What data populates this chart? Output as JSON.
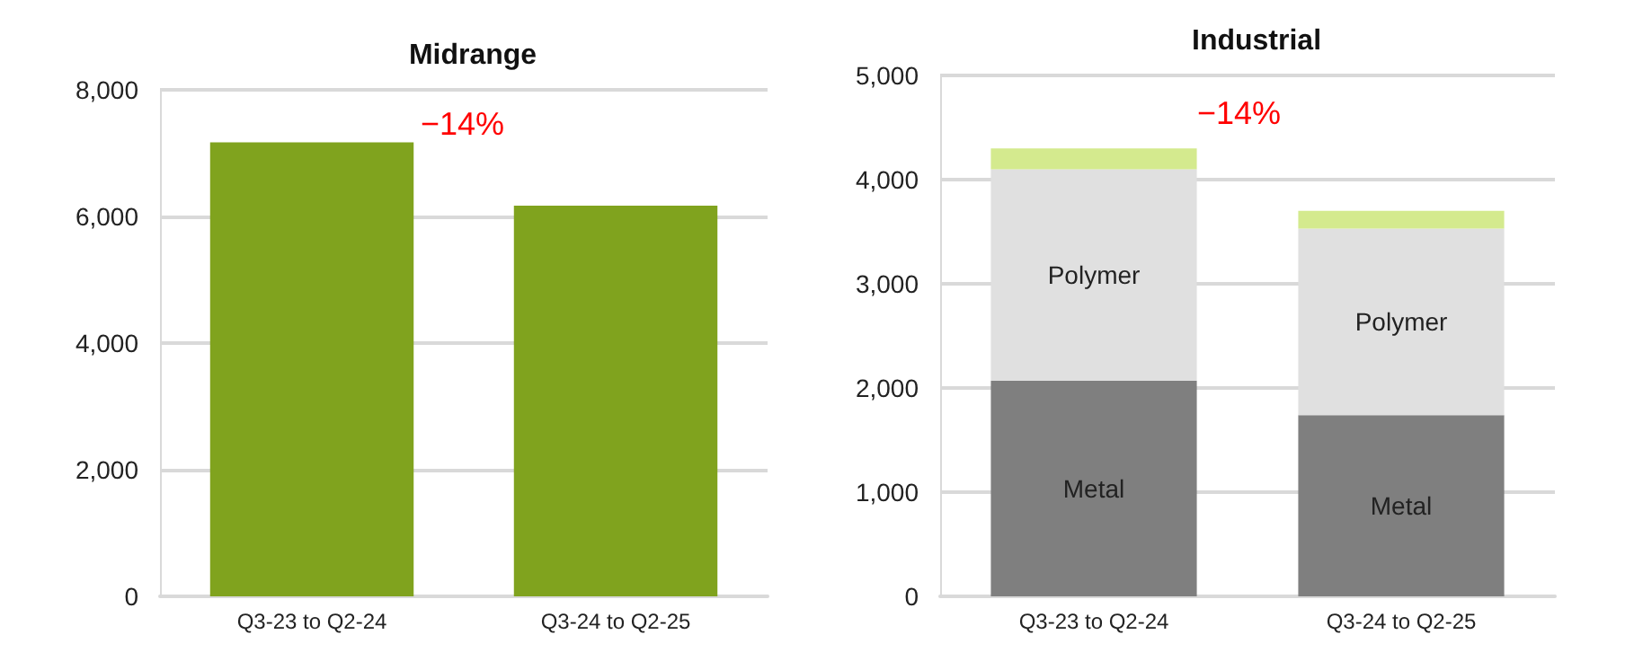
{
  "chart_data": [
    {
      "type": "bar",
      "title": "Midrange",
      "categories": [
        "Q3-23 to Q2-24",
        "Q3-24 to Q2-25"
      ],
      "values": [
        7170,
        6170
      ],
      "color": "#80a31e",
      "ylim": [
        0,
        8000
      ],
      "yticks": [
        0,
        {
          "value": 2000,
          "label": "2,000"
        },
        {
          "value": 4000,
          "label": "4,000"
        },
        {
          "value": 6000,
          "label": "6,000"
        },
        {
          "value": 8000,
          "label": "8,000"
        }
      ],
      "grid": "y",
      "legend": false,
      "annotations": [
        "−14%"
      ]
    },
    {
      "type": "bar",
      "title": "Industrial",
      "categories": [
        "Q3-23 to Q2-24",
        "Q3-24 to Q2-25"
      ],
      "stacked": true,
      "series": [
        {
          "name": "Metal",
          "color": "#7f7f7f",
          "values": [
            2070,
            1740
          ]
        },
        {
          "name": "Polymer",
          "color": "#e0e0e0",
          "values": [
            2030,
            1790
          ]
        },
        {
          "color": "#d4ea8e",
          "values": [
            200,
            170
          ]
        }
      ],
      "ylim": [
        0,
        5000
      ],
      "yticks": [
        0,
        {
          "value": 1000,
          "label": "1,000"
        },
        {
          "value": 2000,
          "label": "2,000"
        },
        {
          "value": 3000,
          "label": "3,000"
        },
        {
          "value": 4000,
          "label": "4,000"
        },
        {
          "value": 5000,
          "label": "5,000"
        }
      ],
      "grid": "y",
      "legend": false,
      "annotations": [
        "−14%"
      ]
    }
  ]
}
